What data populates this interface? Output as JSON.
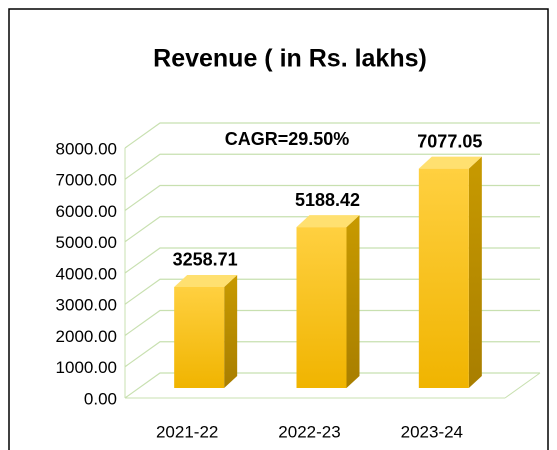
{
  "chart_data": {
    "type": "bar3d",
    "title": "Revenue ( in Rs. lakhs)",
    "annotations": [
      "CAGR=29.50%"
    ],
    "categories": [
      "2021-22",
      "2022-23",
      "2023-24"
    ],
    "values": [
      3258.71,
      5188.42,
      7077.05
    ],
    "color": "#ffc000",
    "ylim": [
      0,
      8000
    ],
    "yticks": [
      {
        "value": 0,
        "label": "0.00"
      },
      {
        "value": 1000,
        "label": "1000.00"
      },
      {
        "value": 2000,
        "label": "2000.00"
      },
      {
        "value": 3000,
        "label": "3000.00"
      },
      {
        "value": 4000,
        "label": "4000.00"
      },
      {
        "value": 5000,
        "label": "5000.00"
      },
      {
        "value": 6000,
        "label": "6000.00"
      },
      {
        "value": 7000,
        "label": "7000.00"
      },
      {
        "value": 8000,
        "label": "8000.00"
      }
    ],
    "grid": true
  }
}
